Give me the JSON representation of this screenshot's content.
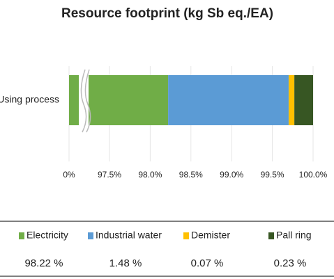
{
  "chart_data": {
    "type": "stacked-bar-broken-axis",
    "title": "Resource footprint (kg Sb eq./EA)",
    "categories": [
      "Using process"
    ],
    "series": [
      {
        "name": "Electricity",
        "color": "#70ad47",
        "values": [
          98.22
        ],
        "value_labels": [
          "98.22 %"
        ]
      },
      {
        "name": "Industrial water",
        "color": "#5b9bd5",
        "values": [
          1.48
        ],
        "value_labels": [
          "1.48 %"
        ]
      },
      {
        "name": "Demister",
        "color": "#ffc000",
        "values": [
          0.07
        ],
        "value_labels": [
          "0.07 %"
        ]
      },
      {
        "name": "Pall ring",
        "color": "#375623",
        "values": [
          0.23
        ],
        "value_labels": [
          "0.23 %"
        ]
      }
    ],
    "xlim": [
      0,
      100
    ],
    "xbreak": [
      0,
      97.5
    ],
    "xticks": [
      {
        "value": 0,
        "label": "0%"
      },
      {
        "value": 97.5,
        "label": "97.5%"
      },
      {
        "value": 98.0,
        "label": "98.0%"
      },
      {
        "value": 98.5,
        "label": "98.5%"
      },
      {
        "value": 99.0,
        "label": "99.0%"
      },
      {
        "value": 99.5,
        "label": "99.5%"
      },
      {
        "value": 100,
        "label": "100.0%"
      }
    ],
    "grid": true
  }
}
